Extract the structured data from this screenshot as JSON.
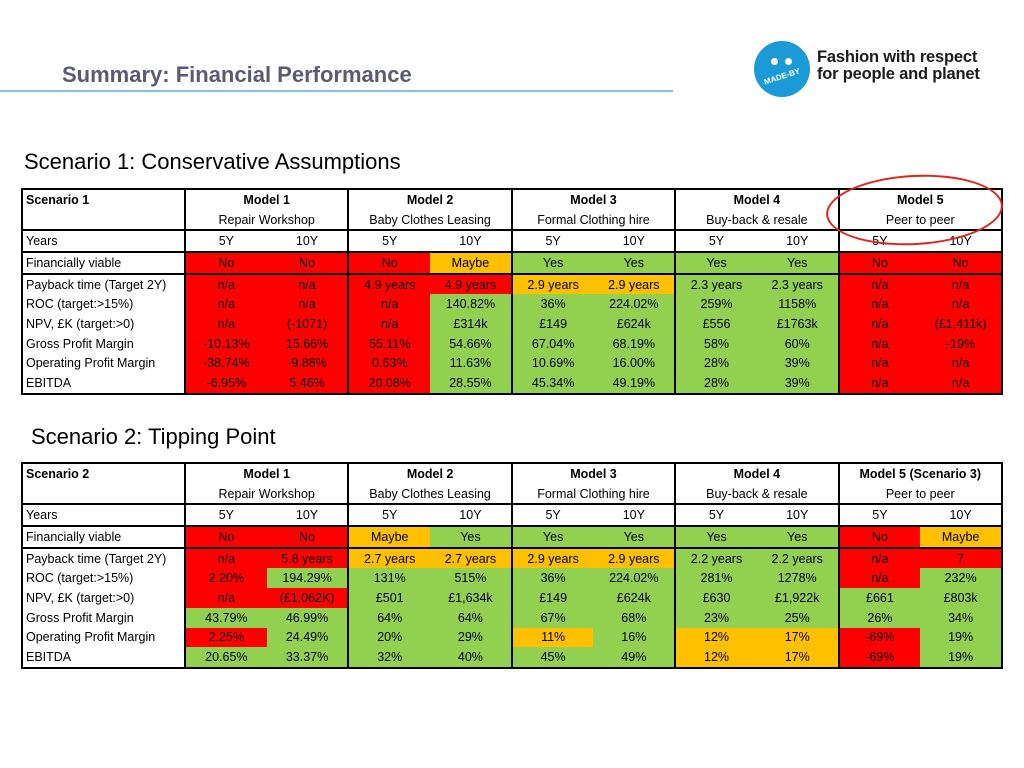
{
  "header": {
    "title": "Summary: Financial Performance",
    "logo_text": "MADE-BY",
    "tagline_line1": "Fashion with respect",
    "tagline_line2": "for people and planet"
  },
  "colors": {
    "red": "#ff0000",
    "orange": "#ffc000",
    "green": "#92d050",
    "title": "#5a5a78",
    "rule": "#7fc4e6",
    "logo": "#1a9ad6"
  },
  "scenario1": {
    "heading": "Scenario 1: Conservative Assumptions",
    "corner": "Scenario 1",
    "models": [
      "Model 1",
      "Model 2",
      "Model 3",
      "Model 4",
      "Model 5"
    ],
    "subtitles": [
      "Repair Workshop",
      "Baby Clothes Leasing",
      "Formal Clothing hire",
      "Buy-back & resale",
      "Peer to peer"
    ],
    "years_label": "Years",
    "years": [
      "5Y",
      "10Y",
      "5Y",
      "10Y",
      "5Y",
      "10Y",
      "5Y",
      "10Y",
      "5Y",
      "10Y"
    ],
    "rows": [
      {
        "label": "Financially viable",
        "cells": [
          {
            "v": "No",
            "c": "red"
          },
          {
            "v": "No",
            "c": "red"
          },
          {
            "v": "No",
            "c": "red"
          },
          {
            "v": "Maybe",
            "c": "orange"
          },
          {
            "v": "Yes",
            "c": "green"
          },
          {
            "v": "Yes",
            "c": "green"
          },
          {
            "v": "Yes",
            "c": "green"
          },
          {
            "v": "Yes",
            "c": "green"
          },
          {
            "v": "No",
            "c": "red"
          },
          {
            "v": "No",
            "c": "red"
          }
        ]
      },
      {
        "label": "Payback time (Target 2Y)",
        "cells": [
          {
            "v": "n/a",
            "c": "red"
          },
          {
            "v": "n/a",
            "c": "red"
          },
          {
            "v": "4.9 years",
            "c": "red"
          },
          {
            "v": "4.9 years",
            "c": "red"
          },
          {
            "v": "2.9 years",
            "c": "orange"
          },
          {
            "v": "2.9 years",
            "c": "orange"
          },
          {
            "v": "2.3 years",
            "c": "green"
          },
          {
            "v": "2.3 years",
            "c": "green"
          },
          {
            "v": "n/a",
            "c": "red"
          },
          {
            "v": "n/a",
            "c": "red"
          }
        ]
      },
      {
        "label": "ROC (target:>15%)",
        "cells": [
          {
            "v": "n/a",
            "c": "red"
          },
          {
            "v": "n/a",
            "c": "red"
          },
          {
            "v": "n/a",
            "c": "red"
          },
          {
            "v": "140.82%",
            "c": "green"
          },
          {
            "v": "36%",
            "c": "green"
          },
          {
            "v": "224.02%",
            "c": "green"
          },
          {
            "v": "259%",
            "c": "green"
          },
          {
            "v": "1158%",
            "c": "green"
          },
          {
            "v": "n/a",
            "c": "red"
          },
          {
            "v": "n/a",
            "c": "red"
          }
        ]
      },
      {
        "label": "NPV, £K (target:>0)",
        "cells": [
          {
            "v": "n/a",
            "c": "red"
          },
          {
            "v": "(-1071)",
            "c": "red"
          },
          {
            "v": "n/a",
            "c": "red"
          },
          {
            "v": "£314k",
            "c": "green"
          },
          {
            "v": "£149",
            "c": "green"
          },
          {
            "v": "£624k",
            "c": "green"
          },
          {
            "v": "£556",
            "c": "green"
          },
          {
            "v": "£1763k",
            "c": "green"
          },
          {
            "v": "n/a",
            "c": "red"
          },
          {
            "v": "(£1,411k)",
            "c": "red"
          }
        ]
      },
      {
        "label": "Gross  Profit Margin",
        "cells": [
          {
            "v": "-10.13%",
            "c": "red"
          },
          {
            "v": "15.66%",
            "c": "red"
          },
          {
            "v": "55.11%",
            "c": "red"
          },
          {
            "v": "54.66%",
            "c": "green"
          },
          {
            "v": "67.04%",
            "c": "green"
          },
          {
            "v": "68.19%",
            "c": "green"
          },
          {
            "v": "58%",
            "c": "green"
          },
          {
            "v": "60%",
            "c": "green"
          },
          {
            "v": "n/a",
            "c": "red"
          },
          {
            "v": "-19%",
            "c": "red"
          }
        ]
      },
      {
        "label": "Operating Profit Margin",
        "cells": [
          {
            "v": "-38.74%",
            "c": "red"
          },
          {
            "v": "-9.88%",
            "c": "red"
          },
          {
            "v": "0.63%",
            "c": "red"
          },
          {
            "v": "11.63%",
            "c": "green"
          },
          {
            "v": "10.69%",
            "c": "green"
          },
          {
            "v": "16.00%",
            "c": "green"
          },
          {
            "v": "28%",
            "c": "green"
          },
          {
            "v": "39%",
            "c": "green"
          },
          {
            "v": "n/a",
            "c": "red"
          },
          {
            "v": "n/a",
            "c": "red"
          }
        ]
      },
      {
        "label": "EBITDA",
        "cells": [
          {
            "v": "-6.95%",
            "c": "red"
          },
          {
            "v": "5.46%",
            "c": "red"
          },
          {
            "v": "20.08%",
            "c": "red"
          },
          {
            "v": "28.55%",
            "c": "green"
          },
          {
            "v": "45.34%",
            "c": "green"
          },
          {
            "v": "49.19%",
            "c": "green"
          },
          {
            "v": "28%",
            "c": "green"
          },
          {
            "v": "39%",
            "c": "green"
          },
          {
            "v": "n/a",
            "c": "red"
          },
          {
            "v": "n/a",
            "c": "red"
          }
        ]
      }
    ]
  },
  "scenario2": {
    "heading": "Scenario 2: Tipping Point",
    "corner": "Scenario 2",
    "models": [
      "Model 1",
      "Model 2",
      "Model 3",
      "Model 4",
      "Model 5 (Scenario 3)"
    ],
    "subtitles": [
      "Repair Workshop",
      "Baby Clothes Leasing",
      "Formal Clothing hire",
      "Buy-back & resale",
      "Peer to peer"
    ],
    "years_label": "Years",
    "years": [
      "5Y",
      "10Y",
      "5Y",
      "10Y",
      "5Y",
      "10Y",
      "5Y",
      "10Y",
      "5Y",
      "10Y"
    ],
    "rows": [
      {
        "label": "Financially viable",
        "cells": [
          {
            "v": "No",
            "c": "red"
          },
          {
            "v": "No",
            "c": "red"
          },
          {
            "v": "Maybe",
            "c": "orange"
          },
          {
            "v": "Yes",
            "c": "green"
          },
          {
            "v": "Yes",
            "c": "green"
          },
          {
            "v": "Yes",
            "c": "green"
          },
          {
            "v": "Yes",
            "c": "green"
          },
          {
            "v": "Yes",
            "c": "green"
          },
          {
            "v": "No",
            "c": "red"
          },
          {
            "v": "Maybe",
            "c": "orange"
          }
        ]
      },
      {
        "label": "Payback time (Target 2Y)",
        "cells": [
          {
            "v": "n/a",
            "c": "red"
          },
          {
            "v": "5.8 years",
            "c": "red"
          },
          {
            "v": "2.7 years",
            "c": "orange"
          },
          {
            "v": "2.7 years",
            "c": "orange"
          },
          {
            "v": "2.9 years",
            "c": "orange"
          },
          {
            "v": "2.9 years",
            "c": "orange"
          },
          {
            "v": "2.2 years",
            "c": "green"
          },
          {
            "v": "2.2 years",
            "c": "green"
          },
          {
            "v": "n/a",
            "c": "red"
          },
          {
            "v": "7",
            "c": "red"
          }
        ]
      },
      {
        "label": "ROC (target:>15%)",
        "cells": [
          {
            "v": "2.20%",
            "c": "red"
          },
          {
            "v": "194.29%",
            "c": "green"
          },
          {
            "v": "131%",
            "c": "green"
          },
          {
            "v": "515%",
            "c": "green"
          },
          {
            "v": "36%",
            "c": "green"
          },
          {
            "v": "224.02%",
            "c": "green"
          },
          {
            "v": "281%",
            "c": "green"
          },
          {
            "v": "1278%",
            "c": "green"
          },
          {
            "v": "n/a",
            "c": "red"
          },
          {
            "v": "232%",
            "c": "green"
          }
        ]
      },
      {
        "label": "NPV, £K (target:>0)",
        "cells": [
          {
            "v": "n/a",
            "c": "red"
          },
          {
            "v": "(£1,062K)",
            "c": "red"
          },
          {
            "v": "£501",
            "c": "green"
          },
          {
            "v": "£1,634k",
            "c": "green"
          },
          {
            "v": "£149",
            "c": "green"
          },
          {
            "v": "£624k",
            "c": "green"
          },
          {
            "v": "£630",
            "c": "green"
          },
          {
            "v": "£1,922k",
            "c": "green"
          },
          {
            "v": "£661",
            "c": "green"
          },
          {
            "v": "£803k",
            "c": "green"
          }
        ]
      },
      {
        "label": "Gross  Profit Margin",
        "cells": [
          {
            "v": "43.79%",
            "c": "green"
          },
          {
            "v": "46.99%",
            "c": "green"
          },
          {
            "v": "64%",
            "c": "green"
          },
          {
            "v": "64%",
            "c": "green"
          },
          {
            "v": "67%",
            "c": "green"
          },
          {
            "v": "68%",
            "c": "green"
          },
          {
            "v": "23%",
            "c": "green"
          },
          {
            "v": "25%",
            "c": "green"
          },
          {
            "v": "26%",
            "c": "green"
          },
          {
            "v": "34%",
            "c": "green"
          }
        ]
      },
      {
        "label": " Operating Profit Margin",
        "cells": [
          {
            "v": "2.25%",
            "c": "red"
          },
          {
            "v": "24.49%",
            "c": "green"
          },
          {
            "v": "20%",
            "c": "green"
          },
          {
            "v": "29%",
            "c": "green"
          },
          {
            "v": "11%",
            "c": "orange"
          },
          {
            "v": "16%",
            "c": "green"
          },
          {
            "v": "12%",
            "c": "orange"
          },
          {
            "v": "17%",
            "c": "orange"
          },
          {
            "v": "-69%",
            "c": "red"
          },
          {
            "v": "19%",
            "c": "green"
          }
        ]
      },
      {
        "label": "EBITDA",
        "cells": [
          {
            "v": "20.65%",
            "c": "green"
          },
          {
            "v": "33.37%",
            "c": "green"
          },
          {
            "v": "32%",
            "c": "green"
          },
          {
            "v": "40%",
            "c": "green"
          },
          {
            "v": "45%",
            "c": "green"
          },
          {
            "v": "49%",
            "c": "green"
          },
          {
            "v": "12%",
            "c": "orange"
          },
          {
            "v": "17%",
            "c": "orange"
          },
          {
            "v": "-69%",
            "c": "red"
          },
          {
            "v": "19%",
            "c": "green"
          }
        ]
      }
    ]
  }
}
